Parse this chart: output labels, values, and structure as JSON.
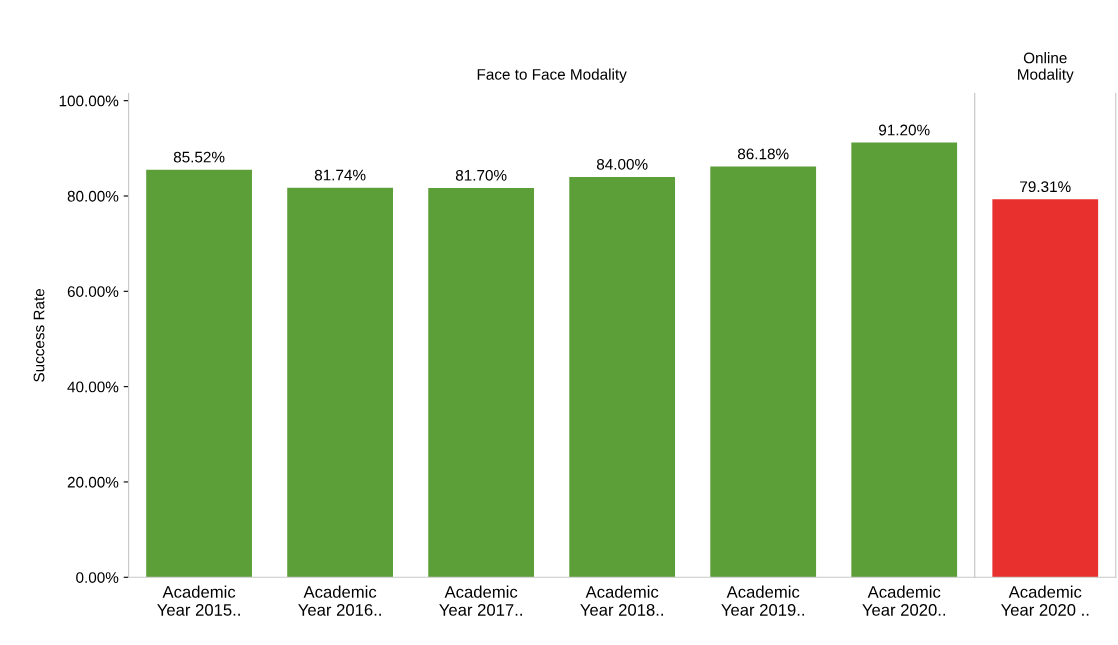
{
  "chart_data": [
    {
      "type": "bar",
      "title": "Face to Face Modality",
      "ylabel": "Success Rate",
      "categories": [
        "Academic\nYear 2015..",
        "Academic\nYear 2016..",
        "Academic\nYear 2017..",
        "Academic\nYear 2018..",
        "Academic\nYear 2019..",
        "Academic\nYear 2020.."
      ],
      "values": [
        85.52,
        81.74,
        81.7,
        84.0,
        86.18,
        91.2
      ],
      "value_labels": [
        "85.52%",
        "81.74%",
        "81.70%",
        "84.00%",
        "86.18%",
        "91.20%"
      ],
      "color": "#5c9e38",
      "ylim": [
        0,
        101.5
      ],
      "yticks": [
        {
          "value": 0,
          "label": "0.00%"
        },
        {
          "value": 20,
          "label": "20.00%"
        },
        {
          "value": 40,
          "label": "40.00%"
        },
        {
          "value": 60,
          "label": "60.00%"
        },
        {
          "value": 80,
          "label": "80.00%"
        },
        {
          "value": 100,
          "label": "100.00%"
        }
      ],
      "grid": false
    },
    {
      "type": "bar",
      "title": "Online\nModality",
      "categories": [
        "Academic\nYear 2020 .."
      ],
      "values": [
        79.31
      ],
      "value_labels": [
        "79.31%"
      ],
      "color": "#e8302e",
      "ylim": [
        0,
        101.5
      ],
      "tick_labels": "x",
      "grid": false
    }
  ]
}
